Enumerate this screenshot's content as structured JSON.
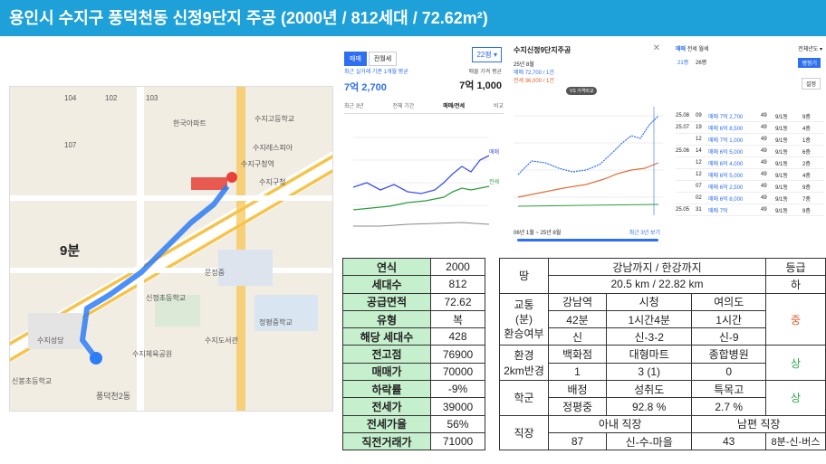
{
  "title": "용인시 수지구 풍덕천동 신정9단지 주공 (2000년 / 812세대 / 72.62m²)",
  "map": {
    "walk_time": "9분",
    "labels": [
      "수지고등학교",
      "한국아파트",
      "수지구청역",
      "수지구청",
      "수지레스피아",
      "신정초등학교",
      "수지도서관",
      "수지체육공원",
      "풍덕천2동",
      "정평중학교",
      "문정중",
      "수지성당",
      "신봉초등학교",
      "104",
      "102",
      "103",
      "107"
    ],
    "station": "수지구청역"
  },
  "panel1": {
    "tabs": [
      "매매",
      "전월세"
    ],
    "size": "22평",
    "recent_label": "최근 실거래 기준 1개월 평균",
    "asking_label": "매물 가격 평균",
    "recent_value": "7억 2,700",
    "asking_value": "7억 1,000",
    "period_tabs": [
      "최근 3년",
      "전체 기간",
      "매매/전세",
      "비교"
    ],
    "legend": [
      "매매",
      "전세"
    ]
  },
  "panel2": {
    "title": "수지신정9단지주공",
    "date": "25년 8월",
    "sale": "매매 72,700 / 1건",
    "rent": "전세 36,000 / 1건",
    "compare_btn": "VS 가격비교",
    "range": "06년 1월 ~ 25년 8월",
    "range_link": "최근 3년 보기"
  },
  "panel3": {
    "tabs": [
      "매매",
      "전세",
      "월세"
    ],
    "filter": "전체년도",
    "size_a": "21평",
    "size_b": "26평",
    "btn": "평형기",
    "btn2": "설정",
    "rows": [
      [
        "25.08",
        "09",
        "매매 7억 2,700",
        "49",
        "9/1동",
        "9층"
      ],
      [
        "25.07",
        "19",
        "매매 6억 8,500",
        "49",
        "9/1동",
        "4층"
      ],
      [
        "",
        "12",
        "매매 7억 1,000",
        "49",
        "9/1동",
        "1층"
      ],
      [
        "25.06",
        "14",
        "매매 6억 5,000",
        "49",
        "9/1동",
        "6층"
      ],
      [
        "",
        "12",
        "매매 6억 4,000",
        "49",
        "9/1동",
        "2층"
      ],
      [
        "",
        "12",
        "매매 6억 5,000",
        "49",
        "9/1동",
        "4층"
      ],
      [
        "",
        "07",
        "매매 6억 2,500",
        "49",
        "9/1동",
        "9층"
      ],
      [
        "",
        "02",
        "매매 6억 8,000",
        "49",
        "9/1동",
        "7층"
      ],
      [
        "25.05",
        "31",
        "매매 7억",
        "49",
        "9/1동",
        "9층"
      ]
    ]
  },
  "left_table": [
    [
      "연식",
      "2000"
    ],
    [
      "세대수",
      "812"
    ],
    [
      "공급면적",
      "72.62"
    ],
    [
      "유형",
      "복"
    ],
    [
      "해당 세대수",
      "428"
    ],
    [
      "전고점",
      "76900"
    ],
    [
      "매매가",
      "70000"
    ],
    [
      "하락률",
      "-9%"
    ],
    [
      "전세가",
      "39000"
    ],
    [
      "전세가율",
      "56%"
    ],
    [
      "직전거래가",
      "71000"
    ]
  ],
  "right_table": {
    "land_label": "땅",
    "land_head": "강남까지 / 한강까지",
    "grade_head": "등급",
    "land_value": "20.5 km / 22.82 km",
    "land_grade": "하",
    "traffic_label": "교통 (분) 환승여부",
    "traffic_cols": [
      "강남역",
      "시청",
      "여의도"
    ],
    "traffic_time": [
      "42분",
      "1시간4분",
      "1시간"
    ],
    "traffic_transfer": [
      "신",
      "신-3-2",
      "신-9"
    ],
    "traffic_grade": "중",
    "env_label": "환경 2km반경",
    "env_cols": [
      "백화점",
      "대형마트",
      "종합병원"
    ],
    "env_vals": [
      "1",
      "3 (1)",
      "0"
    ],
    "env_grade": "상",
    "school_label": "학군",
    "school_cols": [
      "배정",
      "성취도",
      "특목고"
    ],
    "school_vals": [
      "정평중",
      "92.8 %",
      "2.7 %"
    ],
    "school_grade": "상",
    "job_label": "직장",
    "job_wife": "아내 직장",
    "job_husband": "남편 직장",
    "job_vals": [
      "87",
      "신-수-마을",
      "43",
      "8분-신-버스"
    ]
  }
}
